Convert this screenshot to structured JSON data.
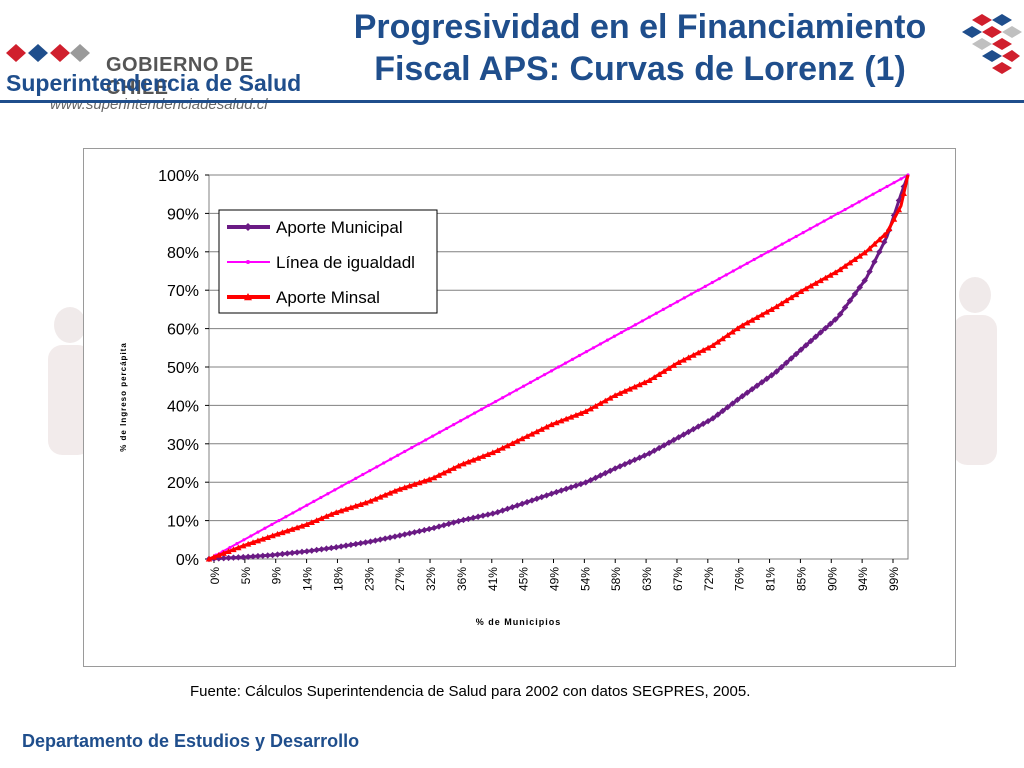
{
  "header": {
    "gobierno": "GOBIERNO DE CHILE",
    "institucion": "Superintendencia de Salud",
    "url": "www.superintendenciadesalud.cl",
    "title_line1": "Progresividad en el Financiamiento",
    "title_line2": "Fiscal APS: Curvas de Lorenz (1)"
  },
  "colors": {
    "title": "#1f4e8c",
    "municipal": "#6a1a84",
    "igualdad": "#ff00ff",
    "minsal": "#ff0000"
  },
  "chart_data": {
    "type": "line",
    "title": "",
    "xlabel": "% de Municipios",
    "ylabel": "% de Ingreso percápita",
    "x_ticks": [
      "0%",
      "5%",
      "9%",
      "14%",
      "18%",
      "23%",
      "27%",
      "32%",
      "36%",
      "41%",
      "45%",
      "49%",
      "54%",
      "58%",
      "63%",
      "67%",
      "72%",
      "76%",
      "81%",
      "85%",
      "90%",
      "94%",
      "99%"
    ],
    "y_ticks": [
      "0%",
      "10%",
      "20%",
      "30%",
      "40%",
      "50%",
      "60%",
      "70%",
      "80%",
      "90%",
      "100%"
    ],
    "xlim": [
      0,
      100
    ],
    "ylim": [
      0,
      100
    ],
    "grid": true,
    "legend_position": "top-left",
    "series": [
      {
        "name": "Aporte Municipal",
        "color": "#6a1a84",
        "marker": "diamond",
        "x": [
          0,
          5,
          9,
          14,
          18,
          23,
          27,
          32,
          36,
          41,
          45,
          49,
          54,
          58,
          63,
          67,
          72,
          76,
          81,
          85,
          90,
          94,
          97,
          99,
          100
        ],
        "y": [
          0,
          0.5,
          1,
          2,
          3,
          4.5,
          6,
          8,
          10,
          12,
          14.5,
          17,
          20,
          23.5,
          27.5,
          31.5,
          36.5,
          42,
          48.5,
          55,
          63,
          73,
          84,
          95,
          100
        ]
      },
      {
        "name": "Línea de igualdadl",
        "color": "#ff00ff",
        "marker": "dot",
        "x": [
          0,
          100
        ],
        "y": [
          0,
          100
        ]
      },
      {
        "name": "Aporte Minsal",
        "color": "#ff0000",
        "marker": "triangle",
        "x": [
          0,
          5,
          9,
          14,
          18,
          23,
          27,
          32,
          36,
          41,
          45,
          49,
          54,
          58,
          63,
          67,
          72,
          76,
          81,
          85,
          90,
          94,
          97,
          99,
          100
        ],
        "y": [
          0,
          3.5,
          6,
          9,
          12,
          15,
          18,
          21,
          24.5,
          28,
          31.5,
          35,
          38.5,
          42.5,
          46.5,
          51,
          55.5,
          60.5,
          65.5,
          70,
          75,
          80,
          85,
          92,
          100
        ]
      }
    ]
  },
  "footer": {
    "source": "Fuente: Cálculos Superintendencia de Salud para 2002 con datos SEGPRES, 2005.",
    "department": "Departamento de Estudios y Desarrollo"
  }
}
